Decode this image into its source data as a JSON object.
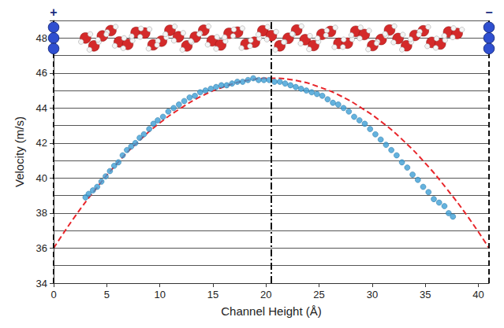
{
  "chart_data": {
    "type": "scatter",
    "x_label": "Channel Height (Å)",
    "y_label": "Velocity (m/s)",
    "xlim": [
      0,
      41
    ],
    "xticks": [
      0,
      5,
      10,
      15,
      20,
      25,
      30,
      35,
      40
    ],
    "ylim": [
      34,
      49
    ],
    "yticks": [
      34,
      36,
      38,
      40,
      42,
      44,
      46,
      48
    ],
    "grid": true,
    "series": [
      {
        "type": "scatter",
        "color": "#3d9fd6",
        "marker": "circle",
        "x": [
          3.0,
          3.3,
          3.7,
          4.1,
          4.5,
          4.9,
          5.3,
          5.7,
          6.1,
          6.5,
          6.9,
          7.3,
          7.7,
          8.1,
          8.5,
          9.0,
          9.4,
          9.8,
          10.3,
          10.8,
          11.3,
          11.8,
          12.3,
          12.8,
          13.3,
          13.8,
          14.3,
          14.8,
          15.3,
          15.8,
          16.3,
          16.8,
          17.3,
          17.8,
          18.3,
          18.8,
          19.3,
          19.8,
          20.3,
          20.8,
          21.3,
          21.8,
          22.3,
          22.8,
          23.3,
          23.8,
          24.3,
          24.8,
          25.3,
          25.8,
          26.3,
          26.8,
          27.3,
          27.8,
          28.3,
          28.8,
          29.3,
          29.8,
          30.3,
          30.8,
          31.3,
          31.8,
          32.3,
          32.8,
          33.3,
          33.8,
          34.3,
          34.8,
          35.3,
          35.8,
          36.3,
          36.8,
          37.2,
          37.6
        ],
        "values": [
          38.9,
          39.1,
          39.3,
          39.5,
          39.8,
          40.1,
          40.4,
          40.7,
          40.9,
          41.3,
          41.6,
          41.8,
          42.0,
          42.3,
          42.5,
          42.8,
          43.1,
          43.3,
          43.5,
          43.8,
          44.0,
          44.2,
          44.4,
          44.6,
          44.7,
          44.9,
          45.0,
          45.1,
          45.2,
          45.3,
          45.3,
          45.4,
          45.5,
          45.5,
          45.6,
          45.7,
          45.6,
          45.6,
          45.6,
          45.5,
          45.5,
          45.4,
          45.3,
          45.2,
          45.1,
          45.0,
          44.9,
          44.8,
          44.7,
          44.5,
          44.3,
          44.2,
          44.0,
          43.8,
          43.5,
          43.3,
          43.1,
          42.8,
          42.5,
          42.2,
          41.9,
          41.6,
          41.3,
          40.9,
          40.6,
          40.2,
          39.9,
          39.5,
          39.2,
          38.8,
          38.6,
          38.4,
          38.0,
          37.8
        ]
      },
      {
        "type": "line",
        "color": "#e8262b",
        "line_style": "dashed",
        "x": [
          0,
          2,
          4,
          6,
          8,
          10,
          12,
          14,
          16,
          18,
          20.5,
          23,
          25,
          27,
          29,
          31,
          33,
          35,
          37,
          39,
          41
        ],
        "values": [
          36.0,
          37.8,
          39.4,
          40.85,
          42.1,
          43.15,
          44.0,
          44.7,
          45.2,
          45.55,
          45.7,
          45.55,
          45.2,
          44.7,
          44.0,
          43.15,
          42.1,
          40.85,
          39.4,
          37.8,
          36.0
        ]
      }
    ],
    "vertical_lines": [
      {
        "x": 0,
        "line_style": "dashed"
      },
      {
        "x": 41,
        "line_style": "dashed"
      },
      {
        "x": 20.5,
        "line_style": "dashdot"
      }
    ],
    "annotations": [
      {
        "text": "+",
        "x": 0
      },
      {
        "text": "−",
        "x": 41
      }
    ]
  }
}
